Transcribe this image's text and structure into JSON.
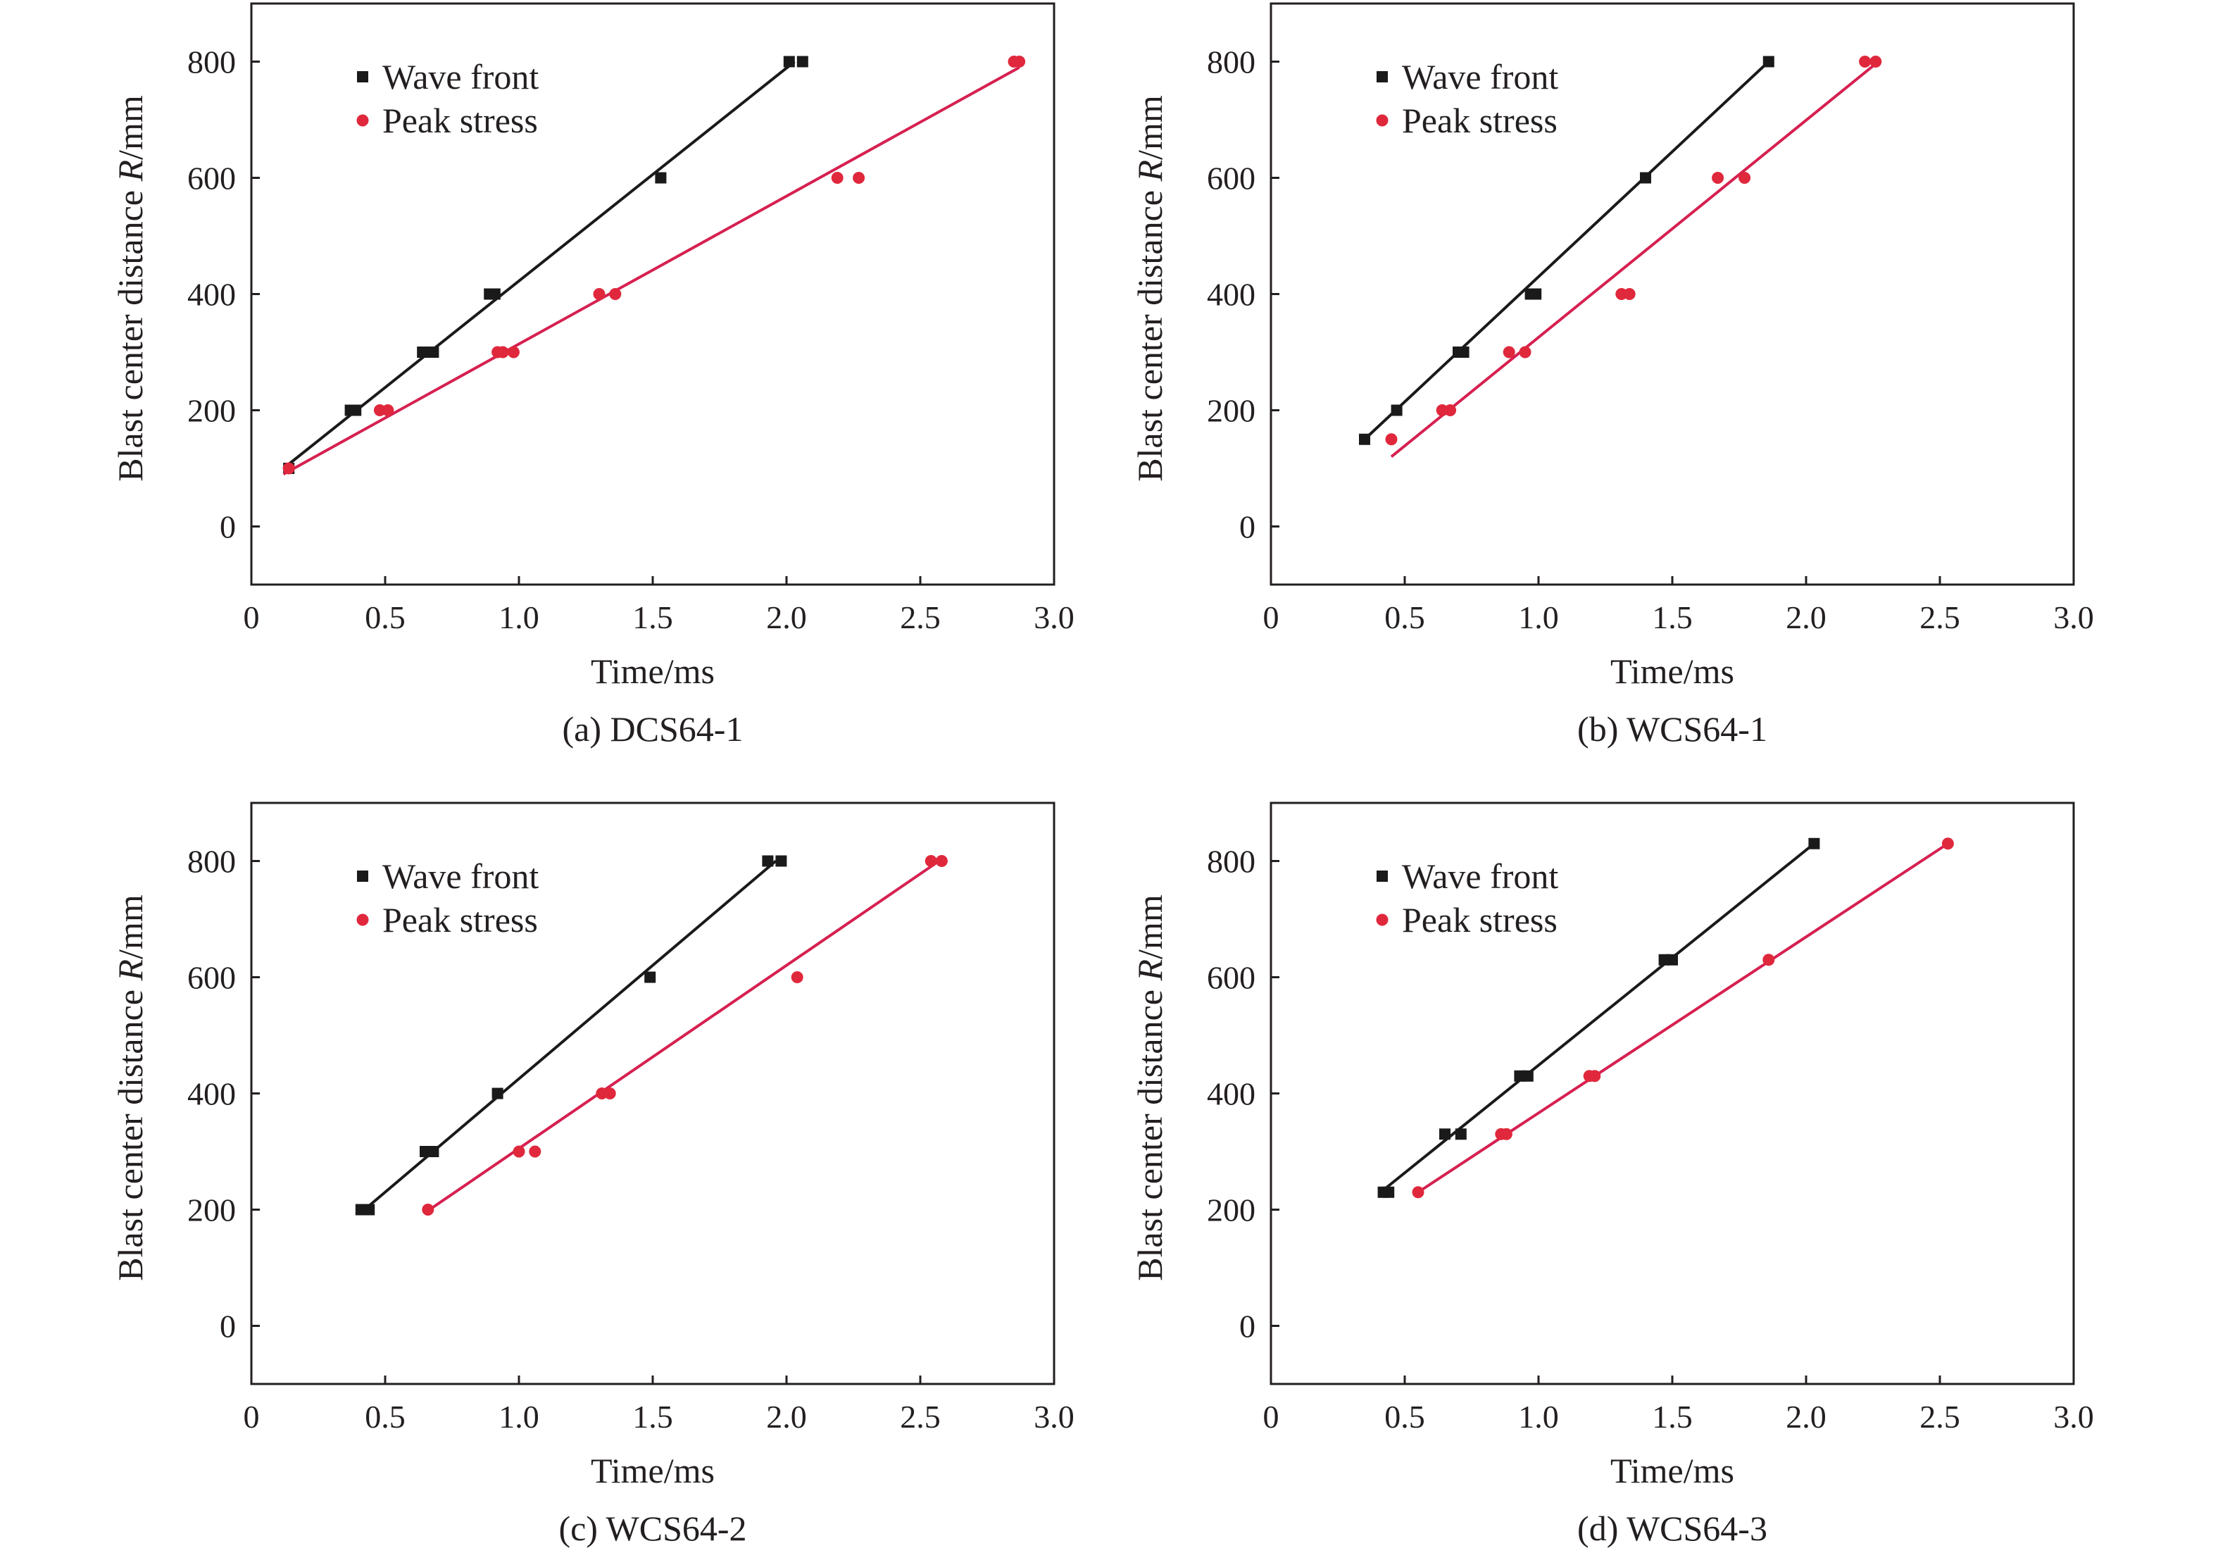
{
  "colors": {
    "wave_front": "#1a1a1a",
    "peak_stress_marker": "#e0283c",
    "peak_stress_line": "#d62050",
    "axes": "#231f20"
  },
  "chart_data": [
    {
      "type": "scatter",
      "caption": "(a) DCS64-1",
      "xlabel": "Time/ms",
      "ylabel_parts": [
        "Blast center distance ",
        "R",
        "/mm"
      ],
      "xlim": [
        0,
        3.0
      ],
      "ylim": [
        -100,
        900
      ],
      "xticks": [
        0,
        0.5,
        1.0,
        1.5,
        2.0,
        2.5,
        3.0
      ],
      "xtick_labels": [
        "0",
        "0.5",
        "1.0",
        "1.5",
        "2.0",
        "2.5",
        "3.0"
      ],
      "yticks": [
        0,
        200,
        400,
        600,
        800
      ],
      "ytick_labels": [
        "0",
        "200",
        "400",
        "600",
        "800"
      ],
      "legend_position": "top-left",
      "series": [
        {
          "name": "Wave front",
          "marker": "square",
          "x": [
            0.14,
            0.37,
            0.39,
            0.64,
            0.68,
            0.89,
            0.91,
            1.53,
            2.01,
            2.06
          ],
          "y": [
            100,
            200,
            200,
            300,
            300,
            400,
            400,
            600,
            800,
            800
          ],
          "fit": [
            [
              0.12,
              100
            ],
            [
              2.03,
              800
            ]
          ]
        },
        {
          "name": "Peak stress",
          "marker": "circle",
          "x": [
            0.14,
            0.48,
            0.51,
            0.92,
            0.94,
            0.98,
            1.3,
            1.36,
            2.19,
            2.27,
            2.85,
            2.87
          ],
          "y": [
            100,
            200,
            200,
            300,
            300,
            300,
            400,
            400,
            600,
            600,
            800,
            800
          ],
          "fit": [
            [
              0.12,
              90
            ],
            [
              2.87,
              790
            ]
          ]
        }
      ]
    },
    {
      "type": "scatter",
      "caption": "(b) WCS64-1",
      "xlabel": "Time/ms",
      "ylabel_parts": [
        "Blast center distance ",
        "R",
        "/mm"
      ],
      "xlim": [
        0,
        3.0
      ],
      "ylim": [
        -100,
        900
      ],
      "xticks": [
        0,
        0.5,
        1.0,
        1.5,
        2.0,
        2.5,
        3.0
      ],
      "xtick_labels": [
        "0",
        "0.5",
        "1.0",
        "1.5",
        "2.0",
        "2.5",
        "3.0"
      ],
      "yticks": [
        0,
        200,
        400,
        600,
        800
      ],
      "ytick_labels": [
        "0",
        "200",
        "400",
        "600",
        "800"
      ],
      "legend_position": "top-left",
      "series": [
        {
          "name": "Wave front",
          "marker": "square",
          "x": [
            0.35,
            0.47,
            0.7,
            0.72,
            0.97,
            0.99,
            1.4,
            1.86
          ],
          "y": [
            150,
            200,
            300,
            300,
            400,
            400,
            600,
            800
          ],
          "fit": [
            [
              0.35,
              150
            ],
            [
              1.86,
              800
            ]
          ]
        },
        {
          "name": "Peak stress",
          "marker": "circle",
          "x": [
            0.45,
            0.64,
            0.67,
            0.89,
            0.95,
            1.31,
            1.34,
            1.67,
            1.77,
            2.22,
            2.26
          ],
          "y": [
            150,
            200,
            200,
            300,
            300,
            400,
            400,
            600,
            600,
            800,
            800
          ],
          "fit": [
            [
              0.45,
              120
            ],
            [
              2.27,
              800
            ]
          ]
        }
      ]
    },
    {
      "type": "scatter",
      "caption": "(c) WCS64-2",
      "xlabel": "Time/ms",
      "ylabel_parts": [
        "Blast center distance ",
        "R",
        "/mm"
      ],
      "xlim": [
        0,
        3.0
      ],
      "ylim": [
        -100,
        900
      ],
      "xticks": [
        0,
        0.5,
        1.0,
        1.5,
        2.0,
        2.5,
        3.0
      ],
      "xtick_labels": [
        "0",
        "0.5",
        "1.0",
        "1.5",
        "2.0",
        "2.5",
        "3.0"
      ],
      "yticks": [
        0,
        200,
        400,
        600,
        800
      ],
      "ytick_labels": [
        "0",
        "200",
        "400",
        "600",
        "800"
      ],
      "legend_position": "top-left",
      "series": [
        {
          "name": "Wave front",
          "marker": "square",
          "x": [
            0.41,
            0.44,
            0.65,
            0.68,
            0.92,
            1.49,
            1.93,
            1.98
          ],
          "y": [
            200,
            200,
            300,
            300,
            400,
            600,
            800,
            800
          ],
          "fit": [
            [
              0.41,
              195
            ],
            [
              1.96,
              800
            ]
          ]
        },
        {
          "name": "Peak stress",
          "marker": "circle",
          "x": [
            0.66,
            1.0,
            1.06,
            1.31,
            1.34,
            2.04,
            2.54,
            2.58
          ],
          "y": [
            200,
            300,
            300,
            400,
            400,
            600,
            800,
            800
          ],
          "fit": [
            [
              0.65,
              195
            ],
            [
              2.57,
              800
            ]
          ]
        }
      ]
    },
    {
      "type": "scatter",
      "caption": "(d) WCS64-3",
      "xlabel": "Time/ms",
      "ylabel_parts": [
        "Blast center distance ",
        "R",
        "/mm"
      ],
      "xlim": [
        0,
        3.0
      ],
      "ylim": [
        -100,
        900
      ],
      "xticks": [
        0,
        0.5,
        1.0,
        1.5,
        2.0,
        2.5,
        3.0
      ],
      "xtick_labels": [
        "0",
        "0.5",
        "1.0",
        "1.5",
        "2.0",
        "2.5",
        "3.0"
      ],
      "yticks": [
        0,
        200,
        400,
        600,
        800
      ],
      "ytick_labels": [
        "0",
        "200",
        "400",
        "600",
        "800"
      ],
      "legend_position": "top-left",
      "series": [
        {
          "name": "Wave front",
          "marker": "square",
          "x": [
            0.42,
            0.44,
            0.65,
            0.71,
            0.93,
            0.96,
            1.47,
            1.5,
            2.03
          ],
          "y": [
            230,
            230,
            330,
            330,
            430,
            430,
            630,
            630,
            830
          ],
          "fit": [
            [
              0.41,
              230
            ],
            [
              2.03,
              830
            ]
          ]
        },
        {
          "name": "Peak stress",
          "marker": "circle",
          "x": [
            0.55,
            0.86,
            0.88,
            1.19,
            1.21,
            1.86,
            2.53
          ],
          "y": [
            230,
            330,
            330,
            430,
            430,
            630,
            830
          ],
          "fit": [
            [
              0.55,
              230
            ],
            [
              2.53,
              830
            ]
          ]
        }
      ]
    }
  ]
}
